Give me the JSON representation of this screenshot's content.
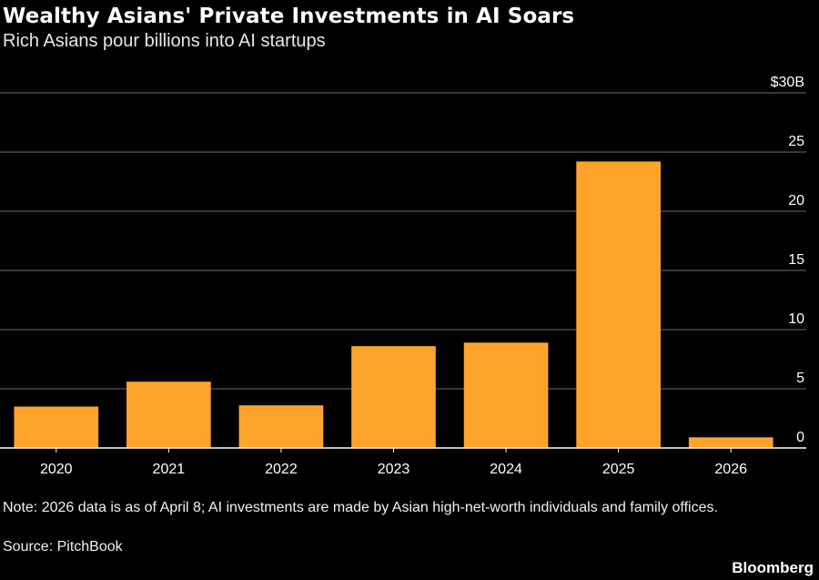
{
  "header": {
    "title": "Wealthy Asians' Private Investments in AI Soars",
    "subtitle": "Rich Asians pour billions into AI startups"
  },
  "footer": {
    "note": "Note: 2026 data is as of April 8; AI investments are made by Asian high-net-worth individuals and family offices.",
    "source": "Source: PitchBook",
    "brand": "Bloomberg"
  },
  "colors": {
    "bar": "#FFA42B",
    "grid": "#6a6a6a",
    "axis": "#ffffff",
    "text": "#ffffff"
  },
  "chart_data": {
    "type": "bar",
    "title": "Wealthy Asians' Private Investments in AI Soars",
    "subtitle": "Rich Asians pour billions into AI startups",
    "categories": [
      "2020",
      "2021",
      "2022",
      "2023",
      "2024",
      "2025",
      "2026"
    ],
    "values": [
      3.5,
      5.6,
      3.6,
      8.6,
      8.9,
      24.2,
      0.9
    ],
    "ylim": [
      0,
      30
    ],
    "yticks": [
      0,
      5,
      10,
      15,
      20,
      25,
      30
    ],
    "ytick_labels": [
      "0",
      "5",
      "10",
      "15",
      "20",
      "25",
      "$30B"
    ],
    "y_axis_position": "right",
    "grid": true
  }
}
